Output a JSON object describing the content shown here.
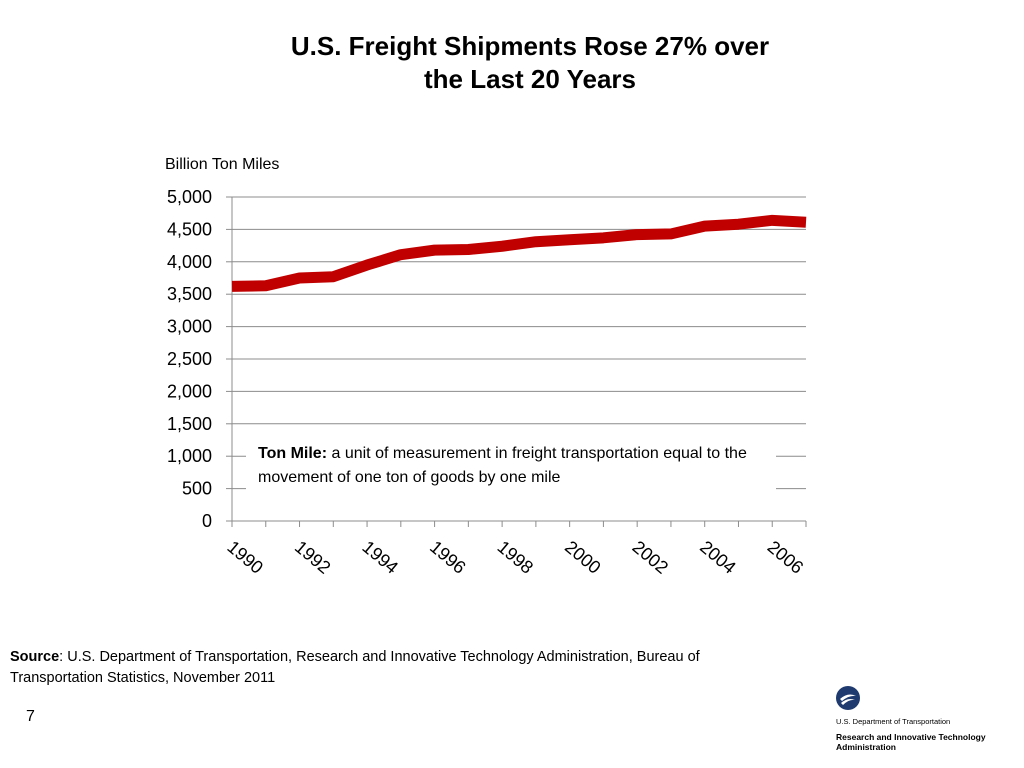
{
  "title": {
    "line1": "U.S. Freight Shipments Rose 27% over",
    "line2": "the Last 20 Years"
  },
  "chart_data": {
    "type": "line",
    "ylabel": "Billion Ton Miles",
    "xlabel": "",
    "ylim": [
      0,
      5000
    ],
    "yticks": [
      0,
      500,
      1000,
      1500,
      2000,
      2500,
      3000,
      3500,
      4000,
      4500,
      5000
    ],
    "ytick_labels": [
      "0",
      "500",
      "1,000",
      "1,500",
      "2,000",
      "2,500",
      "3,000",
      "3,500",
      "4,000",
      "4,500",
      "5,000"
    ],
    "x": [
      1990,
      1991,
      1992,
      1993,
      1994,
      1995,
      1996,
      1997,
      1998,
      1999,
      2000,
      2001,
      2002,
      2003,
      2004,
      2005,
      2006,
      2007
    ],
    "xtick_labels": [
      "1990",
      "1992",
      "1994",
      "1996",
      "1998",
      "2000",
      "2002",
      "2004",
      "2006"
    ],
    "series": [
      {
        "values": [
          3620,
          3630,
          3750,
          3770,
          3950,
          4110,
          4180,
          4190,
          4240,
          4310,
          4340,
          4370,
          4420,
          4430,
          4550,
          4580,
          4640,
          4610
        ],
        "color": "#c00000"
      }
    ],
    "grid": true
  },
  "callout": {
    "term": "Ton Mile:",
    "definition": " a unit of measurement in freight transportation equal to the movement of one ton of goods by one mile"
  },
  "source": {
    "label": "Source",
    "text": ": U.S. Department of Transportation, Research and Innovative Technology Administration, Bureau of Transportation Statistics, November 2011"
  },
  "page_number": "7",
  "logo": {
    "icon": "dot-seal-icon",
    "line1": "U.S. Department of Transportation",
    "line2": "Research and Innovative Technology",
    "line3": "Administration"
  }
}
